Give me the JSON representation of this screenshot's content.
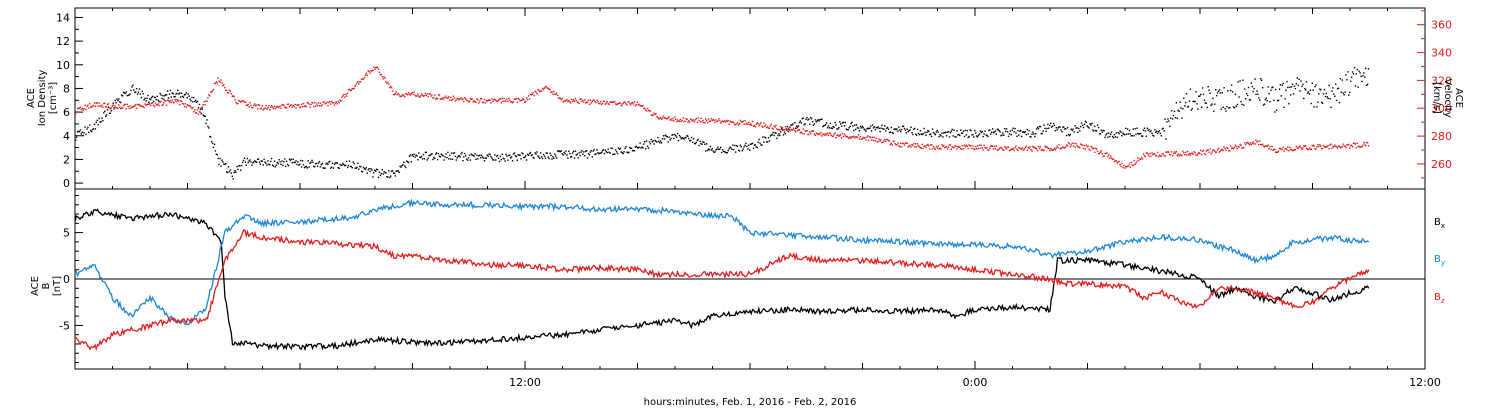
{
  "xaxis": {
    "title": "hours:minutes, Feb.  1, 2016 - Feb.  2, 2016",
    "ticklabels": [
      {
        "t": 12,
        "label": "12:00"
      },
      {
        "t": 24,
        "label": "0:00"
      },
      {
        "t": 36,
        "label": "12:00"
      }
    ],
    "range": [
      0,
      36
    ]
  },
  "chart_data": [
    {
      "type": "scatter",
      "panel": "top",
      "left_axis": {
        "label_lines": [
          "ACE",
          "Ion Density",
          "[cm⁻³]"
        ],
        "range": [
          -0.5,
          14.8
        ],
        "ticks": [
          0,
          2,
          4,
          6,
          8,
          10,
          12,
          14
        ],
        "color": "#000000"
      },
      "right_axis": {
        "label_lines": [
          "ACE",
          "Velocity",
          "[km/s]"
        ],
        "range": [
          242,
          372
        ],
        "ticks": [
          260,
          280,
          300,
          320,
          340,
          360
        ],
        "color": "#e21b1b"
      },
      "series": [
        {
          "key": "density",
          "axis": "left",
          "color": "#000000",
          "points": [
            [
              0.0,
              4.0
            ],
            [
              0.5,
              4.8
            ],
            [
              1.0,
              6.5
            ],
            [
              1.5,
              8.0
            ],
            [
              2.0,
              7.0
            ],
            [
              2.5,
              7.5
            ],
            [
              3.0,
              7.5
            ],
            [
              3.4,
              6.0
            ],
            [
              3.8,
              2.0
            ],
            [
              4.2,
              0.7
            ],
            [
              4.5,
              1.8
            ],
            [
              5.5,
              1.7
            ],
            [
              6.5,
              1.6
            ],
            [
              7.5,
              1.5
            ],
            [
              7.8,
              0.9
            ],
            [
              8.5,
              0.7
            ],
            [
              9.0,
              2.3
            ],
            [
              10.0,
              2.3
            ],
            [
              11.0,
              2.1
            ],
            [
              12.0,
              2.3
            ],
            [
              13.0,
              2.4
            ],
            [
              14.0,
              2.5
            ],
            [
              15.0,
              3.0
            ],
            [
              16.0,
              4.0
            ],
            [
              16.5,
              3.5
            ],
            [
              17.0,
              2.7
            ],
            [
              18.0,
              3.1
            ],
            [
              19.0,
              4.5
            ],
            [
              19.5,
              5.3
            ],
            [
              20.0,
              5.0
            ],
            [
              21.0,
              4.7
            ],
            [
              22.0,
              4.5
            ],
            [
              23.0,
              4.2
            ],
            [
              24.0,
              4.2
            ],
            [
              25.0,
              4.3
            ],
            [
              25.5,
              4.2
            ],
            [
              26.0,
              4.8
            ],
            [
              26.5,
              4.3
            ],
            [
              27.0,
              5.0
            ],
            [
              27.5,
              4.1
            ],
            [
              28.0,
              4.3
            ],
            [
              29.0,
              4.3
            ],
            [
              29.5,
              6.5
            ],
            [
              30.0,
              7.5
            ],
            [
              30.5,
              7.0
            ],
            [
              31.0,
              7.5
            ],
            [
              31.5,
              8.0
            ],
            [
              32.0,
              7.0
            ],
            [
              32.5,
              8.0
            ],
            [
              33.0,
              7.5
            ],
            [
              33.5,
              7.3
            ],
            [
              34.0,
              8.5
            ],
            [
              34.5,
              9.5
            ]
          ]
        },
        {
          "key": "velocity",
          "axis": "right",
          "color": "#e21b1b",
          "points": [
            [
              0.0,
              298
            ],
            [
              0.5,
              303
            ],
            [
              1.0,
              301
            ],
            [
              2.0,
              302
            ],
            [
              2.7,
              305
            ],
            [
              3.3,
              297
            ],
            [
              3.8,
              321
            ],
            [
              4.3,
              305
            ],
            [
              5.0,
              300
            ],
            [
              6.0,
              302
            ],
            [
              7.0,
              304
            ],
            [
              7.5,
              318
            ],
            [
              8.0,
              330
            ],
            [
              8.5,
              310
            ],
            [
              9.0,
              310
            ],
            [
              10.0,
              307
            ],
            [
              11.0,
              305
            ],
            [
              12.0,
              306
            ],
            [
              12.5,
              315
            ],
            [
              13.0,
              306
            ],
            [
              14.0,
              304
            ],
            [
              15.0,
              303
            ],
            [
              15.5,
              294
            ],
            [
              16.0,
              292
            ],
            [
              17.0,
              291
            ],
            [
              18.0,
              289
            ],
            [
              19.0,
              285
            ],
            [
              20.0,
              281
            ],
            [
              21.0,
              279
            ],
            [
              22.0,
              274
            ],
            [
              23.0,
              272
            ],
            [
              24.0,
              272
            ],
            [
              25.0,
              271
            ],
            [
              26.0,
              271
            ],
            [
              26.5,
              274
            ],
            [
              27.0,
              272
            ],
            [
              27.5,
              266
            ],
            [
              28.0,
              257
            ],
            [
              28.5,
              266
            ],
            [
              29.0,
              267
            ],
            [
              30.0,
              268
            ],
            [
              31.0,
              272
            ],
            [
              31.5,
              276
            ],
            [
              32.0,
              270
            ],
            [
              33.0,
              272
            ],
            [
              34.0,
              273
            ],
            [
              34.5,
              274
            ]
          ]
        }
      ]
    },
    {
      "type": "line",
      "panel": "bottom",
      "left_axis": {
        "label_lines": [
          "ACE",
          "B",
          "[nT]"
        ],
        "range": [
          -9.7,
          9.7
        ],
        "ticks": [
          -5,
          0,
          5
        ],
        "color": "#000000"
      },
      "legend": {
        "placement": "right",
        "items": [
          {
            "name": "Bx",
            "base": "B",
            "sub": "x",
            "color": "#000000"
          },
          {
            "name": "By",
            "base": "B",
            "sub": "y",
            "color": "#1e86d6"
          },
          {
            "name": "Bz",
            "base": "B",
            "sub": "z",
            "color": "#e21b1b"
          }
        ]
      },
      "series": [
        {
          "name": "Bx",
          "color": "#000000",
          "points": [
            [
              0.0,
              6.5
            ],
            [
              0.5,
              7.3
            ],
            [
              1.5,
              6.5
            ],
            [
              2.5,
              7.0
            ],
            [
              3.0,
              6.5
            ],
            [
              3.5,
              6.0
            ],
            [
              3.9,
              4.0
            ],
            [
              4.0,
              -2.0
            ],
            [
              4.2,
              -6.8
            ],
            [
              5.0,
              -7.2
            ],
            [
              6.0,
              -7.3
            ],
            [
              7.0,
              -7.2
            ],
            [
              8.0,
              -6.5
            ],
            [
              9.0,
              -6.8
            ],
            [
              10.0,
              -6.9
            ],
            [
              11.0,
              -6.6
            ],
            [
              12.0,
              -6.3
            ],
            [
              13.0,
              -6.0
            ],
            [
              14.0,
              -5.5
            ],
            [
              15.0,
              -5.0
            ],
            [
              16.0,
              -4.5
            ],
            [
              16.5,
              -5.0
            ],
            [
              17.0,
              -4.0
            ],
            [
              18.0,
              -3.5
            ],
            [
              19.0,
              -3.3
            ],
            [
              20.0,
              -3.5
            ],
            [
              21.0,
              -3.3
            ],
            [
              22.0,
              -3.5
            ],
            [
              23.0,
              -3.3
            ],
            [
              23.5,
              -4.0
            ],
            [
              24.0,
              -3.3
            ],
            [
              25.0,
              -3.0
            ],
            [
              25.5,
              -3.2
            ],
            [
              26.0,
              -3.3
            ],
            [
              26.2,
              2.0
            ],
            [
              27.0,
              2.0
            ],
            [
              28.0,
              1.5
            ],
            [
              29.0,
              0.8
            ],
            [
              29.5,
              0.5
            ],
            [
              30.0,
              0.0
            ],
            [
              30.5,
              -1.8
            ],
            [
              31.0,
              -1.0
            ],
            [
              31.5,
              -2.0
            ],
            [
              32.0,
              -2.3
            ],
            [
              32.5,
              -1.0
            ],
            [
              33.0,
              -1.5
            ],
            [
              33.5,
              -2.3
            ],
            [
              34.0,
              -1.5
            ],
            [
              34.5,
              -1.0
            ]
          ]
        },
        {
          "name": "By",
          "color": "#1e86d6",
          "points": [
            [
              0.0,
              0.5
            ],
            [
              0.5,
              1.5
            ],
            [
              1.0,
              -2.0
            ],
            [
              1.5,
              -4.0
            ],
            [
              2.0,
              -2.0
            ],
            [
              2.5,
              -4.0
            ],
            [
              3.0,
              -5.0
            ],
            [
              3.5,
              -3.0
            ],
            [
              4.0,
              5.0
            ],
            [
              4.5,
              6.8
            ],
            [
              5.0,
              6.0
            ],
            [
              6.0,
              6.2
            ],
            [
              7.0,
              6.5
            ],
            [
              7.5,
              6.7
            ],
            [
              8.0,
              7.5
            ],
            [
              9.0,
              8.2
            ],
            [
              10.0,
              8.0
            ],
            [
              11.0,
              8.0
            ],
            [
              12.0,
              7.8
            ],
            [
              13.0,
              7.8
            ],
            [
              14.0,
              7.5
            ],
            [
              15.0,
              7.5
            ],
            [
              16.0,
              7.3
            ],
            [
              17.0,
              6.8
            ],
            [
              17.5,
              6.8
            ],
            [
              18.0,
              5.0
            ],
            [
              19.0,
              4.7
            ],
            [
              20.0,
              4.5
            ],
            [
              21.0,
              4.2
            ],
            [
              22.0,
              4.0
            ],
            [
              23.0,
              3.8
            ],
            [
              24.0,
              3.7
            ],
            [
              25.0,
              3.5
            ],
            [
              25.5,
              3.2
            ],
            [
              26.0,
              2.5
            ],
            [
              27.0,
              3.0
            ],
            [
              28.0,
              4.0
            ],
            [
              29.0,
              4.5
            ],
            [
              30.0,
              4.2
            ],
            [
              30.5,
              3.5
            ],
            [
              31.0,
              3.0
            ],
            [
              31.5,
              2.0
            ],
            [
              32.0,
              2.5
            ],
            [
              32.5,
              4.0
            ],
            [
              33.0,
              4.2
            ],
            [
              33.5,
              4.5
            ],
            [
              34.0,
              4.2
            ],
            [
              34.5,
              4.0
            ]
          ]
        },
        {
          "name": "Bz",
          "color": "#e21b1b",
          "points": [
            [
              0.0,
              -6.5
            ],
            [
              0.5,
              -7.5
            ],
            [
              1.0,
              -6.0
            ],
            [
              1.5,
              -5.5
            ],
            [
              2.0,
              -5.0
            ],
            [
              2.5,
              -4.5
            ],
            [
              3.0,
              -4.5
            ],
            [
              3.5,
              -4.5
            ],
            [
              4.0,
              2.0
            ],
            [
              4.5,
              5.0
            ],
            [
              5.0,
              4.5
            ],
            [
              6.0,
              4.0
            ],
            [
              7.0,
              3.8
            ],
            [
              8.0,
              3.5
            ],
            [
              8.5,
              2.5
            ],
            [
              9.0,
              2.5
            ],
            [
              10.0,
              2.0
            ],
            [
              11.0,
              1.5
            ],
            [
              12.0,
              1.5
            ],
            [
              13.0,
              1.0
            ],
            [
              14.0,
              1.2
            ],
            [
              15.0,
              1.0
            ],
            [
              15.5,
              0.5
            ],
            [
              16.0,
              0.5
            ],
            [
              17.0,
              0.5
            ],
            [
              18.0,
              0.5
            ],
            [
              19.0,
              2.5
            ],
            [
              20.0,
              2.0
            ],
            [
              21.0,
              2.0
            ],
            [
              22.0,
              1.7
            ],
            [
              23.0,
              1.5
            ],
            [
              24.0,
              1.0
            ],
            [
              25.0,
              0.5
            ],
            [
              26.0,
              0.0
            ],
            [
              26.5,
              -0.5
            ],
            [
              27.0,
              -0.5
            ],
            [
              28.0,
              -0.8
            ],
            [
              28.5,
              -2.0
            ],
            [
              29.0,
              -1.5
            ],
            [
              29.5,
              -2.5
            ],
            [
              30.0,
              -3.0
            ],
            [
              30.5,
              -1.0
            ],
            [
              31.0,
              -1.0
            ],
            [
              32.0,
              -2.0
            ],
            [
              32.5,
              -3.0
            ],
            [
              33.0,
              -2.5
            ],
            [
              33.5,
              -1.0
            ],
            [
              34.0,
              0.0
            ],
            [
              34.5,
              1.0
            ]
          ]
        }
      ]
    }
  ]
}
